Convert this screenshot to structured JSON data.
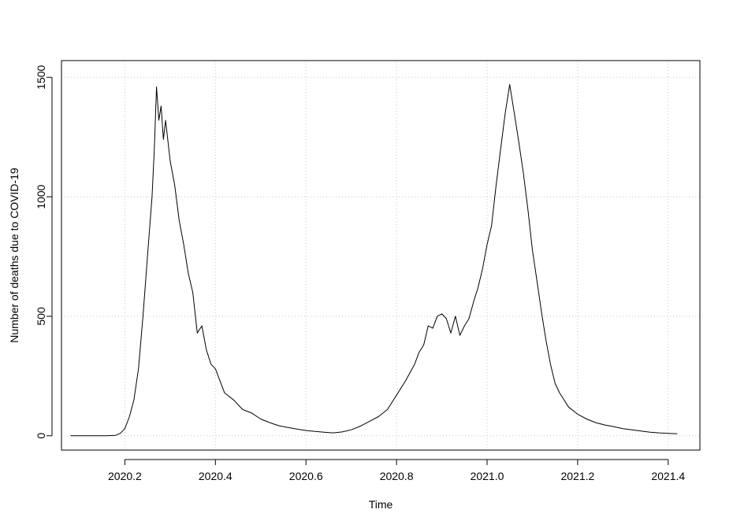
{
  "chart_data": {
    "type": "line",
    "xlabel": "Time",
    "ylabel": "Number of deaths due to COVID-19",
    "xlim": [
      2020.06,
      2021.47
    ],
    "ylim": [
      -60,
      1570
    ],
    "x_ticks": [
      2020.2,
      2020.4,
      2020.6,
      2020.8,
      2021.0,
      2021.2,
      2021.4
    ],
    "x_tick_labels": [
      "2020.2",
      "2020.4",
      "2020.6",
      "2020.8",
      "2021.0",
      "2021.2",
      "2021.4"
    ],
    "y_ticks": [
      0,
      500,
      1000,
      1500
    ],
    "y_tick_labels": [
      "0",
      "500",
      "1000",
      "1500"
    ],
    "grid": true,
    "grid_style": "dotted",
    "line_color": "#000000",
    "grid_color": "#c8c8c8",
    "series": [
      {
        "values": [
          [
            2020.08,
            0
          ],
          [
            2020.12,
            0
          ],
          [
            2020.16,
            0
          ],
          [
            2020.18,
            2
          ],
          [
            2020.19,
            10
          ],
          [
            2020.2,
            30
          ],
          [
            2020.21,
            80
          ],
          [
            2020.22,
            150
          ],
          [
            2020.23,
            280
          ],
          [
            2020.24,
            500
          ],
          [
            2020.25,
            750
          ],
          [
            2020.26,
            1000
          ],
          [
            2020.265,
            1200
          ],
          [
            2020.27,
            1460
          ],
          [
            2020.275,
            1320
          ],
          [
            2020.28,
            1380
          ],
          [
            2020.285,
            1240
          ],
          [
            2020.29,
            1320
          ],
          [
            2020.3,
            1150
          ],
          [
            2020.31,
            1050
          ],
          [
            2020.32,
            900
          ],
          [
            2020.33,
            800
          ],
          [
            2020.34,
            680
          ],
          [
            2020.35,
            600
          ],
          [
            2020.36,
            430
          ],
          [
            2020.37,
            460
          ],
          [
            2020.38,
            360
          ],
          [
            2020.39,
            300
          ],
          [
            2020.4,
            280
          ],
          [
            2020.41,
            230
          ],
          [
            2020.42,
            180
          ],
          [
            2020.44,
            150
          ],
          [
            2020.46,
            110
          ],
          [
            2020.48,
            95
          ],
          [
            2020.5,
            70
          ],
          [
            2020.52,
            55
          ],
          [
            2020.54,
            42
          ],
          [
            2020.56,
            35
          ],
          [
            2020.58,
            28
          ],
          [
            2020.6,
            22
          ],
          [
            2020.62,
            18
          ],
          [
            2020.64,
            15
          ],
          [
            2020.66,
            12
          ],
          [
            2020.68,
            16
          ],
          [
            2020.7,
            25
          ],
          [
            2020.72,
            40
          ],
          [
            2020.74,
            60
          ],
          [
            2020.76,
            80
          ],
          [
            2020.78,
            110
          ],
          [
            2020.8,
            170
          ],
          [
            2020.82,
            230
          ],
          [
            2020.84,
            300
          ],
          [
            2020.85,
            350
          ],
          [
            2020.86,
            380
          ],
          [
            2020.87,
            460
          ],
          [
            2020.88,
            450
          ],
          [
            2020.89,
            500
          ],
          [
            2020.9,
            510
          ],
          [
            2020.91,
            490
          ],
          [
            2020.92,
            430
          ],
          [
            2020.93,
            500
          ],
          [
            2020.94,
            420
          ],
          [
            2020.95,
            460
          ],
          [
            2020.96,
            490
          ],
          [
            2020.97,
            560
          ],
          [
            2020.98,
            620
          ],
          [
            2020.99,
            700
          ],
          [
            2021.0,
            800
          ],
          [
            2021.01,
            880
          ],
          [
            2021.02,
            1050
          ],
          [
            2021.03,
            1200
          ],
          [
            2021.04,
            1350
          ],
          [
            2021.05,
            1470
          ],
          [
            2021.06,
            1350
          ],
          [
            2021.07,
            1230
          ],
          [
            2021.08,
            1100
          ],
          [
            2021.09,
            950
          ],
          [
            2021.1,
            780
          ],
          [
            2021.11,
            650
          ],
          [
            2021.12,
            520
          ],
          [
            2021.13,
            400
          ],
          [
            2021.14,
            300
          ],
          [
            2021.15,
            220
          ],
          [
            2021.16,
            180
          ],
          [
            2021.18,
            120
          ],
          [
            2021.2,
            90
          ],
          [
            2021.22,
            70
          ],
          [
            2021.24,
            55
          ],
          [
            2021.26,
            45
          ],
          [
            2021.28,
            38
          ],
          [
            2021.3,
            30
          ],
          [
            2021.32,
            25
          ],
          [
            2021.34,
            20
          ],
          [
            2021.36,
            15
          ],
          [
            2021.38,
            12
          ],
          [
            2021.4,
            10
          ],
          [
            2021.42,
            8
          ]
        ]
      }
    ]
  }
}
